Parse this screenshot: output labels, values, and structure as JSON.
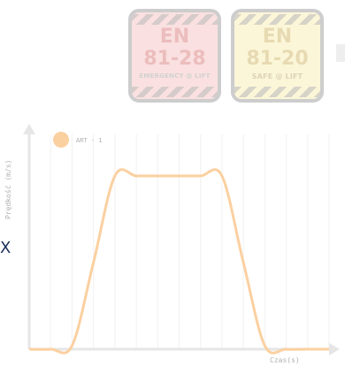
{
  "badges": [
    {
      "line1": "EN",
      "line2": "81-28",
      "line3": "EMERGENCY @ LIFT",
      "color": "#c73a3a"
    },
    {
      "line1": "EN",
      "line2": "81-20",
      "line3": "SAFE @ LIFT",
      "color": "#b8901a"
    }
  ],
  "side_marker": "X",
  "chart_data": {
    "type": "line",
    "title": "",
    "xlabel": "Czas(s)",
    "ylabel": "Prędkość (m/s)",
    "legend_position": "top-left",
    "grid": true,
    "series": [
      {
        "name": "ART - 1",
        "color": "#fbd0a0",
        "x": [
          0,
          1,
          2,
          3,
          4,
          5,
          6,
          7,
          8,
          9,
          10,
          11,
          12,
          13,
          14
        ],
        "y": [
          0,
          0,
          0.02,
          0.5,
          1,
          1,
          1,
          1,
          1,
          1,
          0.5,
          0.02,
          0,
          0,
          0
        ]
      }
    ],
    "xlim": [
      0,
      14
    ],
    "ylim": [
      0,
      1.25
    ]
  }
}
